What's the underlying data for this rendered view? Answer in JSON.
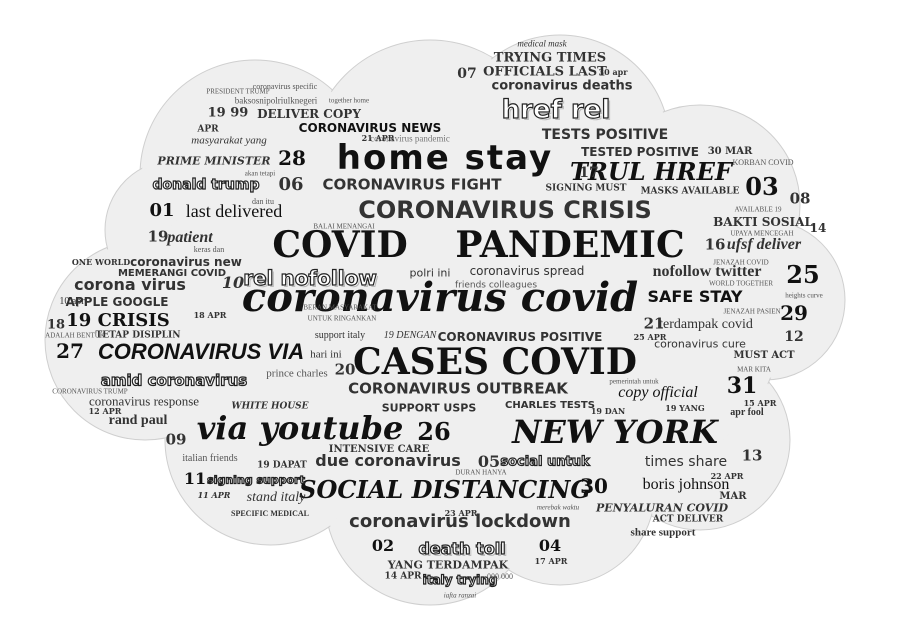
{
  "words": [
    {
      "t": "home stay"
    },
    {
      "t": "COVID"
    },
    {
      "t": "PANDEMIC"
    },
    {
      "t": "coronavirus covid"
    },
    {
      "t": "CASES COVID"
    },
    {
      "t": "CORONAVIRUS CRISIS"
    },
    {
      "t": "via youtube"
    },
    {
      "t": "NEW YORK"
    },
    {
      "t": "SOCIAL DISTANCING"
    },
    {
      "t": "coronavirus lockdown"
    },
    {
      "t": "href rel"
    },
    {
      "t": "TRUL HREF"
    },
    {
      "t": "CORONAVIRUS VIA"
    },
    {
      "t": "CORONAVIRUS FIGHT"
    },
    {
      "t": "CORONAVIRUS OUTBREAK"
    },
    {
      "t": "CORONAVIRUS POSITIVE"
    },
    {
      "t": "CORONAVIRUS NEWS"
    },
    {
      "t": "coronavirus deaths"
    },
    {
      "t": "TRYING TIMES"
    },
    {
      "t": "OFFICIALS LAST"
    },
    {
      "t": "TESTS POSITIVE"
    },
    {
      "t": "TESTED POSITIVE"
    },
    {
      "t": "rel nofollow"
    },
    {
      "t": "nofollow twitter"
    },
    {
      "t": "SAFE STAY"
    },
    {
      "t": "19 CRISIS"
    },
    {
      "t": "corona virus"
    },
    {
      "t": "APPLE GOOGLE"
    },
    {
      "t": "coronavirus new"
    },
    {
      "t": "MEMERANGI COVID"
    },
    {
      "t": "amid coronavirus"
    },
    {
      "t": "coronavirus response"
    },
    {
      "t": "rand paul"
    },
    {
      "t": "last delivered"
    },
    {
      "t": "patient"
    },
    {
      "t": "donald trump"
    },
    {
      "t": "PRIME MINISTER"
    },
    {
      "t": "DELIVER COPY"
    },
    {
      "t": "19 99"
    },
    {
      "t": "masyarakat yang"
    },
    {
      "t": "baksosnipolriulknegeri"
    },
    {
      "t": "due coronavirus"
    },
    {
      "t": "death toll"
    },
    {
      "t": "YANG TERDAMPAK"
    },
    {
      "t": "italy trying"
    },
    {
      "t": "boris johnson"
    },
    {
      "t": "times share"
    },
    {
      "t": "copy official"
    },
    {
      "t": "terdampak covid"
    },
    {
      "t": "coronavirus cure"
    },
    {
      "t": "MUST ACT"
    },
    {
      "t": "ufsf deliver"
    },
    {
      "t": "BAKTI SOSIAL"
    },
    {
      "t": "MASKS AVAILABLE"
    },
    {
      "t": "coronavirus spread"
    },
    {
      "t": "friends colleagues"
    },
    {
      "t": "polri ini"
    },
    {
      "t": "SUPPORT USPS"
    },
    {
      "t": "CHARLES TESTS"
    },
    {
      "t": "INTENSIVE CARE"
    },
    {
      "t": "social untuk"
    },
    {
      "t": "signing support"
    },
    {
      "t": "stand italy"
    },
    {
      "t": "WHITE HOUSE"
    },
    {
      "t": "prince charles"
    },
    {
      "t": "hari ini"
    },
    {
      "t": "italian friends"
    },
    {
      "t": "PENYALURAN COVID"
    },
    {
      "t": "share support"
    },
    {
      "t": "ACT DELIVER"
    },
    {
      "t": "apr fool"
    },
    {
      "t": "SIGNING MUST"
    },
    {
      "t": "coronavirus pandemic"
    },
    {
      "t": "support italy"
    },
    {
      "t": "19 DENGAN"
    },
    {
      "t": "KORBAN COVID"
    },
    {
      "t": "30 MAR"
    },
    {
      "t": "SPECIFIC MEDICAL"
    },
    {
      "t": "ONE WORLD"
    },
    {
      "t": "TETAP DISIPLIN"
    },
    {
      "t": "ADALAH BENTUK"
    },
    {
      "t": "CORONAVIRUS TRUMP"
    },
    {
      "t": "coronavirus specific"
    },
    {
      "t": "PRESIDENT TRUMP"
    },
    {
      "t": "together home"
    },
    {
      "t": "medical mask"
    },
    {
      "t": "21 APR"
    },
    {
      "t": "dan itu"
    },
    {
      "t": "akan tetapi"
    },
    {
      "t": "BALAI MENANGAI"
    },
    {
      "t": "keras dan"
    },
    {
      "t": "JENAZAH COVID"
    },
    {
      "t": "WORLD TOGETHER"
    },
    {
      "t": "JENAZAH PASIEN"
    },
    {
      "t": "UPAYA MENCEGAH"
    },
    {
      "t": "AVAILABLE 19"
    },
    {
      "t": "MAR KITA"
    },
    {
      "t": "heights curve"
    },
    {
      "t": "DURAN HANYA"
    },
    {
      "t": "merebak waktu"
    },
    {
      "t": "iafta ranzai"
    },
    {
      "t": "000 000"
    },
    {
      "t": "14 APR"
    },
    {
      "t": "17 APR"
    },
    {
      "t": "15 APR"
    },
    {
      "t": "19 DAN"
    },
    {
      "t": "19 YANG"
    },
    {
      "t": "25 APR"
    },
    {
      "t": "18 APR"
    },
    {
      "t": "11 APR"
    },
    {
      "t": "22 APR"
    },
    {
      "t": "30 apr"
    },
    {
      "t": "23 APR"
    },
    {
      "t": "12 APR"
    },
    {
      "t": "10 apr"
    },
    {
      "t": "19 DAPAT"
    },
    {
      "t": "UNTUK RINGANKAN"
    },
    {
      "t": "BERAN MASYARAKAT"
    },
    {
      "t": "pemerintah untuk"
    },
    {
      "t": "APR"
    },
    {
      "t": "MAR"
    },
    {
      "t": "28"
    },
    {
      "t": "06"
    },
    {
      "t": "01"
    },
    {
      "t": "10"
    },
    {
      "t": "27"
    },
    {
      "t": "18"
    },
    {
      "t": "09"
    },
    {
      "t": "11"
    },
    {
      "t": "07"
    },
    {
      "t": "17"
    },
    {
      "t": "03"
    },
    {
      "t": "08"
    },
    {
      "t": "14"
    },
    {
      "t": "16"
    },
    {
      "t": "25"
    },
    {
      "t": "29"
    },
    {
      "t": "12"
    },
    {
      "t": "21"
    },
    {
      "t": "31"
    },
    {
      "t": "13"
    },
    {
      "t": "30"
    },
    {
      "t": "26"
    },
    {
      "t": "20"
    },
    {
      "t": "05"
    },
    {
      "t": "02"
    },
    {
      "t": "04"
    },
    {
      "t": "19"
    }
  ]
}
